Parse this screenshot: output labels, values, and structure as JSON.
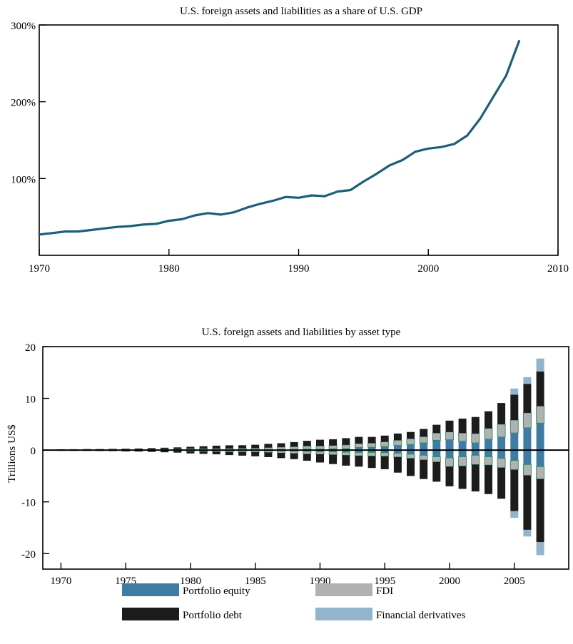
{
  "top_chart": {
    "chart_data": {
      "type": "line",
      "title": "U.S. foreign assets and liabilities as a share of U.S. GDP",
      "xlabel": "",
      "ylabel": "",
      "xlim": [
        1970,
        2010
      ],
      "ylim": [
        0,
        300
      ],
      "x_ticks": [
        1970,
        1980,
        1990,
        2000,
        2010
      ],
      "x_tick_labels": [
        "1970",
        "1980",
        "1990",
        "2000",
        "2010"
      ],
      "y_ticks": [
        100,
        200,
        300
      ],
      "y_tick_labels": [
        "100%",
        "200%",
        "300%"
      ],
      "series": [
        {
          "color": "#1d5f78",
          "x": [
            1970,
            1971,
            1972,
            1973,
            1974,
            1975,
            1976,
            1977,
            1978,
            1979,
            1980,
            1981,
            1982,
            1983,
            1984,
            1985,
            1986,
            1987,
            1988,
            1989,
            1990,
            1991,
            1992,
            1993,
            1994,
            1995,
            1996,
            1997,
            1998,
            1999,
            2000,
            2001,
            2002,
            2003,
            2004,
            2005,
            2006,
            2007
          ],
          "values": [
            27,
            29,
            31,
            31,
            33,
            35,
            37,
            38,
            40,
            41,
            45,
            47,
            52,
            55,
            53,
            56,
            62,
            67,
            71,
            76,
            75,
            78,
            77,
            83,
            85,
            96,
            106,
            117,
            124,
            135,
            139,
            141,
            145,
            156,
            178,
            206,
            234,
            279
          ]
        }
      ]
    }
  },
  "bottom_chart": {
    "chart_data": {
      "type": "bar",
      "title": "U.S. foreign assets and liabilities by asset type",
      "xlabel": "",
      "ylabel": "Trillions US$",
      "xlim": [
        1968.6,
        2009.2
      ],
      "ylim": [
        -23,
        20
      ],
      "x_ticks": [
        1970,
        1975,
        1980,
        1985,
        1990,
        1995,
        2000,
        2005
      ],
      "x_tick_labels": [
        "1970",
        "1975",
        "1980",
        "1985",
        "1990",
        "1995",
        "2000",
        "2005"
      ],
      "y_ticks": [
        20,
        10,
        0,
        -10,
        -20
      ],
      "y_tick_labels": [
        "20",
        "10",
        "0",
        "-10",
        "-20"
      ],
      "stack_order": [
        "Portfolio equity",
        "FDI",
        "Portfolio debt",
        "Financial derivatives"
      ],
      "series_colors": {
        "Portfolio equity": "#3f7ca4",
        "FDI": "#afb2b1",
        "Portfolio debt": "#1c1c1c",
        "Financial derivatives": "#92b4cc"
      },
      "years": [
        1970,
        1971,
        1972,
        1973,
        1974,
        1975,
        1976,
        1977,
        1978,
        1979,
        1980,
        1981,
        1982,
        1983,
        1984,
        1985,
        1986,
        1987,
        1988,
        1989,
        1990,
        1991,
        1992,
        1993,
        1994,
        1995,
        1996,
        1997,
        1998,
        1999,
        2000,
        2001,
        2002,
        2003,
        2004,
        2005,
        2006,
        2007
      ],
      "assets": {
        "Portfolio equity": [
          0.02,
          0.02,
          0.02,
          0.02,
          0.02,
          0.02,
          0.02,
          0.02,
          0.03,
          0.03,
          0.04,
          0.04,
          0.05,
          0.06,
          0.06,
          0.08,
          0.1,
          0.12,
          0.15,
          0.2,
          0.2,
          0.25,
          0.3,
          0.5,
          0.55,
          0.7,
          0.9,
          1.1,
          1.4,
          1.9,
          2.0,
          1.7,
          1.4,
          2.1,
          2.5,
          3.3,
          4.3,
          5.2
        ],
        "FDI": [
          0.08,
          0.09,
          0.1,
          0.11,
          0.12,
          0.13,
          0.14,
          0.16,
          0.18,
          0.2,
          0.25,
          0.25,
          0.25,
          0.27,
          0.28,
          0.3,
          0.4,
          0.45,
          0.5,
          0.6,
          0.6,
          0.65,
          0.7,
          0.75,
          0.8,
          0.9,
          1.0,
          1.1,
          1.2,
          1.4,
          1.5,
          1.6,
          1.8,
          2.1,
          2.5,
          2.5,
          2.9,
          3.3
        ],
        "Portfolio debt": [
          0.05,
          0.05,
          0.06,
          0.07,
          0.09,
          0.12,
          0.15,
          0.2,
          0.25,
          0.3,
          0.35,
          0.45,
          0.55,
          0.6,
          0.6,
          0.65,
          0.7,
          0.75,
          0.9,
          1.0,
          1.2,
          1.2,
          1.3,
          1.3,
          1.2,
          1.2,
          1.3,
          1.3,
          1.5,
          1.6,
          2.2,
          2.8,
          3.2,
          3.3,
          4.1,
          4.9,
          5.6,
          6.7
        ],
        "Financial derivatives": [
          0,
          0,
          0,
          0,
          0,
          0,
          0,
          0,
          0,
          0,
          0,
          0,
          0,
          0,
          0,
          0,
          0,
          0,
          0,
          0,
          0,
          0,
          0,
          0,
          0,
          0,
          0,
          0,
          0,
          0,
          0,
          0,
          0,
          0,
          0,
          1.2,
          1.3,
          2.5
        ]
      },
      "liabilities": {
        "Portfolio equity": [
          -0.01,
          -0.01,
          -0.01,
          -0.01,
          -0.01,
          -0.02,
          -0.02,
          -0.02,
          -0.03,
          -0.03,
          -0.05,
          -0.05,
          -0.06,
          -0.07,
          -0.07,
          -0.1,
          -0.12,
          -0.15,
          -0.2,
          -0.25,
          -0.3,
          -0.35,
          -0.4,
          -0.45,
          -0.45,
          -0.5,
          -0.6,
          -0.8,
          -1.0,
          -1.3,
          -1.5,
          -1.3,
          -1.0,
          -1.3,
          -1.6,
          -2.0,
          -2.8,
          -3.2
        ],
        "FDI": [
          -0.03,
          -0.03,
          -0.04,
          -0.05,
          -0.06,
          -0.07,
          -0.08,
          -0.1,
          -0.12,
          -0.15,
          -0.2,
          -0.22,
          -0.25,
          -0.28,
          -0.3,
          -0.3,
          -0.35,
          -0.4,
          -0.45,
          -0.5,
          -0.5,
          -0.55,
          -0.6,
          -0.65,
          -0.7,
          -0.7,
          -0.75,
          -0.8,
          -0.9,
          -1.0,
          -1.7,
          -1.8,
          -1.8,
          -1.6,
          -1.8,
          -1.8,
          -2.1,
          -2.4
        ],
        "Portfolio debt": [
          -0.06,
          -0.07,
          -0.08,
          -0.1,
          -0.12,
          -0.15,
          -0.18,
          -0.22,
          -0.28,
          -0.32,
          -0.4,
          -0.45,
          -0.5,
          -0.6,
          -0.7,
          -0.8,
          -0.9,
          -1.0,
          -1.1,
          -1.3,
          -1.6,
          -1.8,
          -2.0,
          -2.1,
          -2.3,
          -2.5,
          -3.0,
          -3.4,
          -3.7,
          -3.8,
          -3.8,
          -4.4,
          -5.2,
          -5.6,
          -6.0,
          -8.0,
          -10.5,
          -12.2
        ],
        "Financial derivatives": [
          0,
          0,
          0,
          0,
          0,
          0,
          0,
          0,
          0,
          0,
          0,
          0,
          0,
          0,
          0,
          0,
          0,
          0,
          0,
          0,
          0,
          0,
          0,
          0,
          0,
          0,
          0,
          0,
          0,
          0,
          0,
          0,
          0,
          0,
          0,
          -1.3,
          -1.3,
          -2.5
        ]
      },
      "legend": {
        "placement": "bottom",
        "items": [
          {
            "label": "Portfolio equity",
            "color": "#3f7ca4"
          },
          {
            "label": "FDI",
            "color": "#afb2b1"
          },
          {
            "label": "Portfolio debt",
            "color": "#1c1c1c"
          },
          {
            "label": "Financial derivatives",
            "color": "#92b4cc"
          }
        ]
      }
    }
  }
}
